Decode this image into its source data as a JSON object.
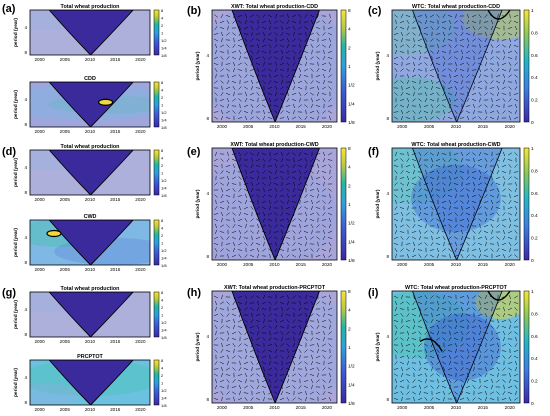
{
  "figure": {
    "panel_letters": [
      "(a)",
      "(b)",
      "(c)",
      "(d)",
      "(e)",
      "(f)",
      "(g)",
      "(h)",
      "(i)"
    ],
    "y_axis_label": "period (year)",
    "x_ticks": [
      "2000",
      "2005",
      "2010",
      "2015",
      "2020"
    ],
    "cbar_ticks_power": [
      "8",
      "4",
      "2",
      "1",
      "1/2",
      "1/4",
      "1/8"
    ],
    "cbar_ticks_coherence": [
      "1",
      "0.8",
      "0.6",
      "0.4",
      "0.2",
      "0"
    ],
    "colors": {
      "deep": "#3a2a9c",
      "low": "#a8a2d8",
      "mid": "#5fb4e8",
      "high": "#3ec6a8",
      "peak": "#f2d93b"
    }
  },
  "chart_data": [
    {
      "id": "a-top",
      "type": "heatmap",
      "subtype": "continuous wavelet transform",
      "title": "Total wheat production",
      "ylabel": "period (year)",
      "yticks": [
        "4",
        "8"
      ],
      "xticks": [
        "2000",
        "2005",
        "2010",
        "2015",
        "2020"
      ],
      "colorbar": [
        "8",
        "4",
        "2",
        "1",
        "1/2",
        "1/4",
        "1/8"
      ]
    },
    {
      "id": "a-bottom",
      "type": "heatmap",
      "subtype": "continuous wavelet transform",
      "title": "CDD",
      "ylabel": "period (year)",
      "yticks": [
        "4",
        "8"
      ],
      "xticks": [
        "2000",
        "2005",
        "2010",
        "2015",
        "2020"
      ],
      "colorbar": [
        "8",
        "4",
        "2",
        "1",
        "1/2",
        "1/4",
        "1/8"
      ]
    },
    {
      "id": "b",
      "type": "heatmap",
      "subtype": "cross wavelet transform",
      "title": "XWT: Total wheat production-CDD",
      "ylabel": "period (year)",
      "yticks": [
        "4",
        "8"
      ],
      "xticks": [
        "2000",
        "2005",
        "2010",
        "2015",
        "2020"
      ],
      "colorbar": [
        "8",
        "4",
        "2",
        "1",
        "1/2",
        "1/4",
        "1/8"
      ]
    },
    {
      "id": "c",
      "type": "heatmap",
      "subtype": "wavelet coherence",
      "title": "WTC: Total wheat production-CDD",
      "ylabel": "period (year)",
      "yticks": [
        "4",
        "8"
      ],
      "xticks": [
        "2000",
        "2005",
        "2010",
        "2015",
        "2020"
      ],
      "colorbar": [
        "1",
        "0.8",
        "0.6",
        "0.4",
        "0.2",
        "0"
      ]
    },
    {
      "id": "d-top",
      "type": "heatmap",
      "subtype": "continuous wavelet transform",
      "title": "Total wheat production",
      "ylabel": "period (year)",
      "yticks": [
        "4",
        "8"
      ],
      "xticks": [
        "2000",
        "2005",
        "2010",
        "2015",
        "2020"
      ],
      "colorbar": [
        "8",
        "4",
        "2",
        "1",
        "1/2",
        "1/4",
        "1/8"
      ]
    },
    {
      "id": "d-bottom",
      "type": "heatmap",
      "subtype": "continuous wavelet transform",
      "title": "CWD",
      "ylabel": "period (year)",
      "yticks": [
        "4",
        "8"
      ],
      "xticks": [
        "2000",
        "2005",
        "2010",
        "2015",
        "2020"
      ],
      "colorbar": [
        "8",
        "4",
        "2",
        "1",
        "1/2",
        "1/4",
        "1/8"
      ]
    },
    {
      "id": "e",
      "type": "heatmap",
      "subtype": "cross wavelet transform",
      "title": "XWT: Total wheat production-CWD",
      "ylabel": "period (year)",
      "yticks": [
        "4",
        "8"
      ],
      "xticks": [
        "2000",
        "2005",
        "2010",
        "2015",
        "2020"
      ],
      "colorbar": [
        "8",
        "4",
        "2",
        "1",
        "1/2",
        "1/4",
        "1/8"
      ]
    },
    {
      "id": "f",
      "type": "heatmap",
      "subtype": "wavelet coherence",
      "title": "WTC: Total wheat production-CWD",
      "ylabel": "period (year)",
      "yticks": [
        "4",
        "8"
      ],
      "xticks": [
        "2000",
        "2005",
        "2010",
        "2015",
        "2020"
      ],
      "colorbar": [
        "1",
        "0.8",
        "0.6",
        "0.4",
        "0.2",
        "0"
      ]
    },
    {
      "id": "g-top",
      "type": "heatmap",
      "subtype": "continuous wavelet transform",
      "title": "Total wheat production",
      "ylabel": "period (year)",
      "yticks": [
        "4",
        "8"
      ],
      "xticks": [
        "2000",
        "2005",
        "2010",
        "2015",
        "2020"
      ],
      "colorbar": [
        "8",
        "4",
        "2",
        "1",
        "1/2",
        "1/4",
        "1/8"
      ]
    },
    {
      "id": "g-bottom",
      "type": "heatmap",
      "subtype": "continuous wavelet transform",
      "title": "PRCPTOT",
      "ylabel": "period (year)",
      "yticks": [
        "4",
        "8"
      ],
      "xticks": [
        "2000",
        "2005",
        "2010",
        "2015",
        "2020"
      ],
      "colorbar": [
        "8",
        "4",
        "2",
        "1",
        "1/2",
        "1/4",
        "1/8"
      ]
    },
    {
      "id": "h",
      "type": "heatmap",
      "subtype": "cross wavelet transform",
      "title": "XWT: Total wheat production-PRCPTOT",
      "ylabel": "period (year)",
      "yticks": [
        "4",
        "8"
      ],
      "xticks": [
        "2000",
        "2005",
        "2010",
        "2015",
        "2020"
      ],
      "colorbar": [
        "8",
        "4",
        "2",
        "1",
        "1/2",
        "1/4",
        "1/8"
      ]
    },
    {
      "id": "i",
      "type": "heatmap",
      "subtype": "wavelet coherence",
      "title": "WTC: Total wheat production-PRCPTOT",
      "ylabel": "period (year)",
      "yticks": [
        "4",
        "8"
      ],
      "xticks": [
        "2000",
        "2005",
        "2010",
        "2015",
        "2020"
      ],
      "colorbar": [
        "1",
        "0.8",
        "0.6",
        "0.4",
        "0.2",
        "0"
      ]
    }
  ]
}
